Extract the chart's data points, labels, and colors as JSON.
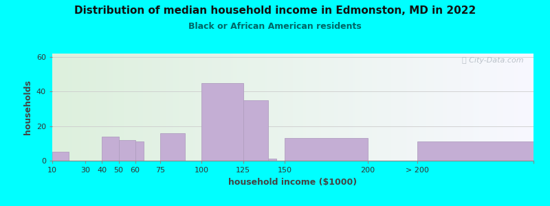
{
  "title": "Distribution of median household income in Edmonston, MD in 2022",
  "subtitle": "Black or African American residents",
  "xlabel": "household income ($1000)",
  "ylabel": "households",
  "background_outer": "#00FFFF",
  "background_inner_top": "#ddf0dd",
  "background_inner_bottom": "#f8f8ff",
  "bar_color": "#c4aed4",
  "bar_edge_color": "#b09ec0",
  "bar_lefts": [
    10,
    30,
    40,
    50,
    60,
    75,
    100,
    125,
    140,
    150,
    200,
    230
  ],
  "bar_widths": [
    10,
    5,
    10,
    10,
    5,
    15,
    25,
    15,
    5,
    50,
    30,
    70
  ],
  "bar_heights": [
    5,
    0,
    14,
    12,
    11,
    16,
    45,
    35,
    1,
    13,
    0,
    11
  ],
  "xlim": [
    10,
    300
  ],
  "ylim": [
    0,
    62
  ],
  "yticks": [
    0,
    20,
    40,
    60
  ],
  "xtick_positions": [
    10,
    30,
    40,
    50,
    60,
    75,
    100,
    125,
    150,
    200,
    230,
    300
  ],
  "xtick_labels": [
    "10",
    "30",
    "40",
    "50",
    "60",
    "75",
    "100",
    "125",
    "150",
    "200",
    "> 200",
    ""
  ],
  "watermark": "ⓘ City-Data.com",
  "title_fontsize": 11,
  "subtitle_fontsize": 9,
  "subtitle_color": "#006666"
}
